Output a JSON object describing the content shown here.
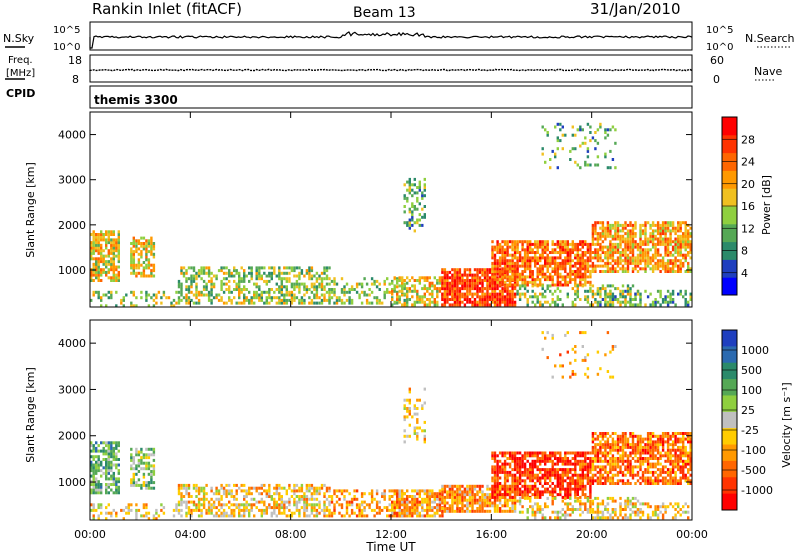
{
  "header": {
    "station": "Rankin Inlet (fitACF)",
    "beam": "Beam 13",
    "date": "31/Jan/2010"
  },
  "noise_panel": {
    "left_label": "N.Sky",
    "right_label": "N.Search",
    "left_ticks": [
      "10^5",
      "10^0"
    ],
    "right_ticks": [
      "10^5",
      "10^0"
    ]
  },
  "freq_panel": {
    "left_label_top": "Freq.",
    "left_label_bottom": "[MHz]",
    "right_label": "Nave",
    "left_ticks": [
      "18",
      "8"
    ],
    "right_ticks": [
      "60",
      "0"
    ]
  },
  "cpid": {
    "label": "CPID",
    "value": "themis 3300"
  },
  "colors": {
    "power": [
      "#0000ff",
      "#1f3fbf",
      "#2b8a6a",
      "#55a855",
      "#8fcf3f",
      "#f0c020",
      "#ff9900",
      "#ff6600",
      "#ff3300",
      "#ff0000"
    ],
    "velocity": [
      "#1f3fbf",
      "#2b6ab0",
      "#2b8a6a",
      "#55a855",
      "#8fcf3f",
      "#c0c0c0",
      "#ffcc00",
      "#ff9900",
      "#ff6600",
      "#ff3300",
      "#ff0000"
    ]
  },
  "chart_data": [
    {
      "type": "heatmap",
      "panel": "power",
      "ylabel": "Slant Range [km]",
      "yticks": [
        "1000",
        "2000",
        "3000",
        "4000"
      ],
      "ylim": [
        180,
        4500
      ],
      "xlim": [
        0,
        24
      ],
      "colorbar_label": "Power [dB]",
      "colorbar_ticks": [
        "4",
        "8",
        "12",
        "16",
        "20",
        "24",
        "28"
      ],
      "colorbar_range": [
        0,
        32
      ]
    },
    {
      "type": "heatmap",
      "panel": "velocity",
      "ylabel": "Slant Range [km]",
      "yticks": [
        "1000",
        "2000",
        "3000",
        "4000"
      ],
      "ylim": [
        180,
        4500
      ],
      "xlim": [
        0,
        24
      ],
      "colorbar_label": "Velocity [m s⁻¹]",
      "colorbar_ticks": [
        "1000",
        "500",
        "100",
        "25",
        "-25",
        "-100",
        "-500",
        "-1000"
      ]
    }
  ],
  "xaxis": {
    "ticks": [
      "00:00",
      "04:00",
      "08:00",
      "12:00",
      "16:00",
      "20:00",
      "00:00"
    ],
    "label": "Time UT"
  }
}
